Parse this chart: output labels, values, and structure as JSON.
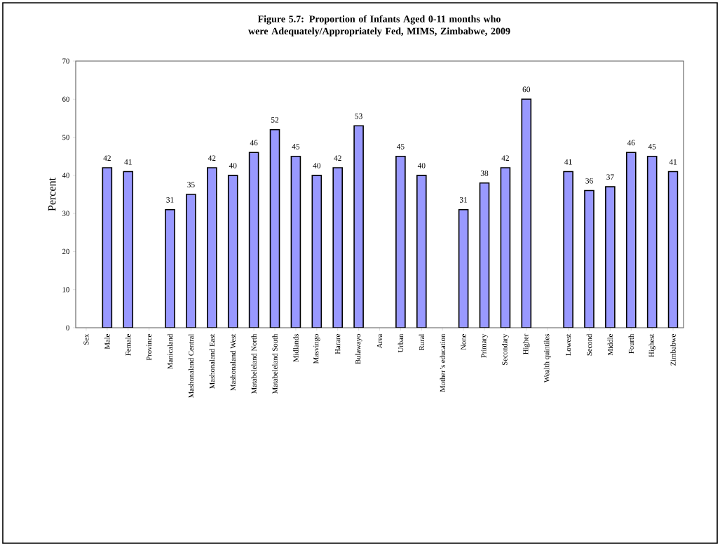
{
  "chart_data": {
    "type": "bar",
    "title": "Figure 5.7: Proportion of Infants Aged 0-11 months who were Adequately/Appropriately Fed, MIMS, Zimbabwe, 2009",
    "ylabel": "Percent",
    "categories": [
      "Sex",
      "Male",
      "Female",
      "Province",
      "Manicaland",
      "Mashonaland Central",
      "Mashonaland East",
      "Mashonaland West",
      "Matabeleland North",
      "Matabeleland South",
      "Midlands",
      "Masvingo",
      "Harare",
      "Bulawayo",
      "Area",
      "Urban",
      "Rural",
      "Mother’s education",
      "None",
      "Primary",
      "Secondary",
      "Higher",
      "Wealth quintiles",
      "Lowest",
      "Second",
      "Middle",
      "Fourth",
      "Highest",
      "Zimbabwe"
    ],
    "values": [
      null,
      42,
      41,
      null,
      31,
      35,
      42,
      40,
      46,
      52,
      45,
      40,
      42,
      53,
      null,
      45,
      40,
      null,
      31,
      38,
      42,
      60,
      null,
      41,
      36,
      37,
      46,
      45,
      41
    ],
    "color": "#9999ff",
    "ylim": [
      0,
      70
    ],
    "yticks": [
      0,
      10,
      20,
      30,
      40,
      50,
      60,
      70
    ],
    "data_labels": true
  }
}
